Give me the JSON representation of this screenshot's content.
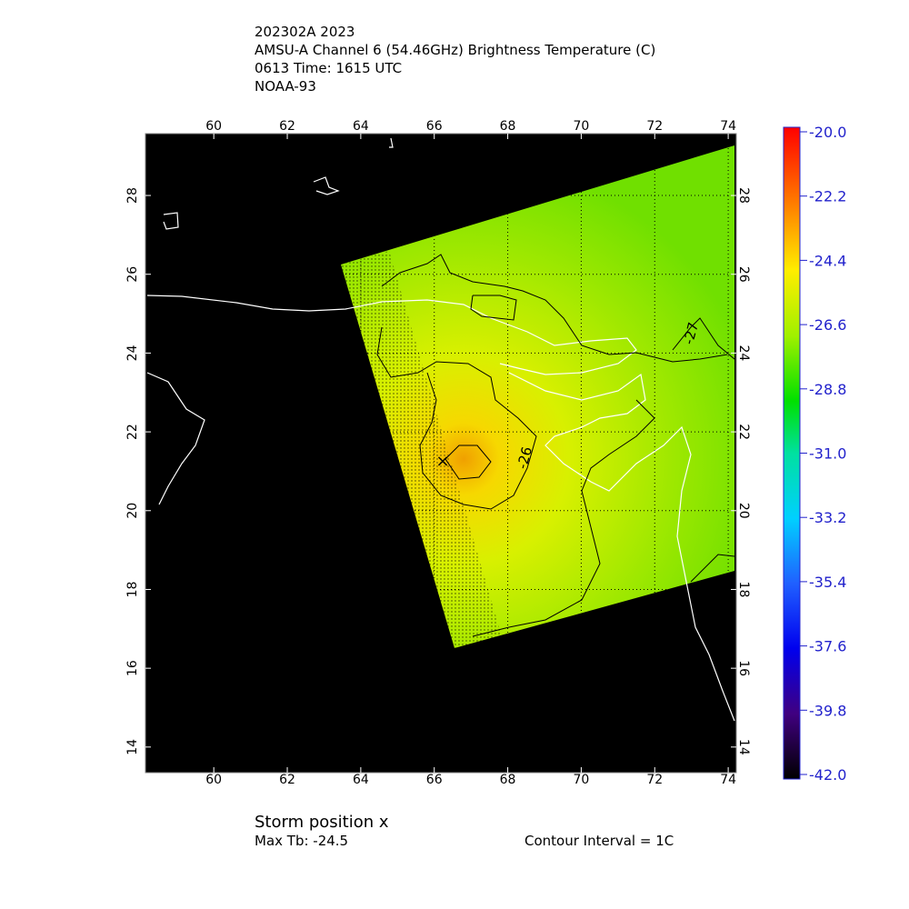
{
  "header": {
    "lines": [
      "202302A 2023",
      "AMSU-A Channel 6 (54.46GHz) Brightness Temperature (C)",
      "0613 Time: 1615 UTC",
      "NOAA-93"
    ]
  },
  "chart_data": {
    "type": "map",
    "xlim": [
      58.14,
      74.22
    ],
    "ylim": [
      13.35,
      29.57
    ],
    "xticks": [
      60,
      62,
      64,
      66,
      68,
      70,
      72,
      74
    ],
    "yticks": [
      14,
      16,
      18,
      20,
      22,
      24,
      26,
      28
    ],
    "grid": true,
    "colorbar": {
      "lim": [
        -20,
        -42
      ],
      "ticks": [
        {
          "value": -20,
          "label": "-20.0"
        },
        -22.2,
        -24.4,
        -26.6,
        -28.8,
        {
          "value": -31,
          "label": "-31.0"
        },
        -33.2,
        -35.4,
        -37.6,
        -39.8,
        {
          "value": -42,
          "label": "-42.0"
        }
      ]
    },
    "annotations": [
      "-26",
      "-27"
    ]
  },
  "footer": {
    "storm": "Storm position x",
    "max_tb": "Max Tb: -24.5",
    "contour": "Contour Interval = 1C"
  }
}
